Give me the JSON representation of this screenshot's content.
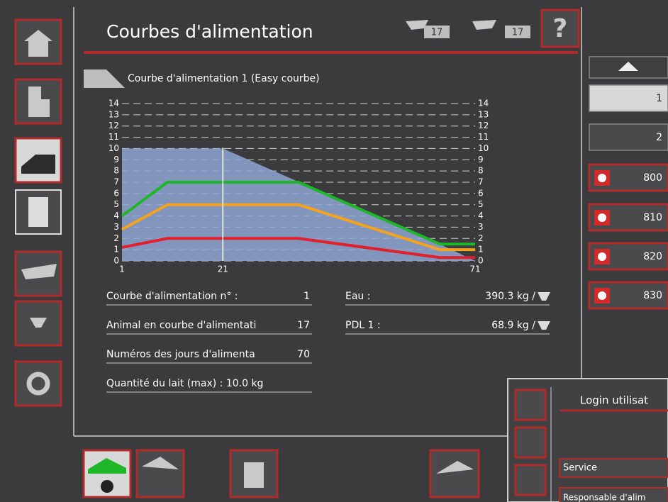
{
  "header": {
    "title": "Courbes d'alimentation",
    "badges": [
      "17",
      "17"
    ],
    "help": "?"
  },
  "chart_data": {
    "type": "area-line",
    "title": "Courbe d'alimentation 1 (Easy courbe)",
    "xlim": [
      1,
      71
    ],
    "xticks": [
      1,
      21,
      71
    ],
    "ylim": [
      0,
      14
    ],
    "yticks": [
      0,
      1,
      2,
      3,
      4,
      5,
      6,
      7,
      8,
      9,
      10,
      11,
      12,
      13,
      14
    ],
    "marker_x": 21,
    "series": [
      {
        "kind": "area",
        "color": "#8fa6d4",
        "x": [
          1,
          21,
          64,
          71
        ],
        "values": [
          10,
          10,
          1.5,
          0
        ]
      },
      {
        "kind": "line",
        "color": "#1fb62a",
        "x": [
          1,
          10,
          36,
          64,
          71
        ],
        "values": [
          4,
          7,
          7,
          1.5,
          1.5
        ]
      },
      {
        "kind": "line",
        "color": "#f5a21d",
        "x": [
          1,
          10,
          36,
          64,
          71
        ],
        "values": [
          2.8,
          5,
          5,
          1,
          1
        ]
      },
      {
        "kind": "line",
        "color": "#e0202a",
        "x": [
          1,
          10,
          36,
          64,
          71
        ],
        "values": [
          1.2,
          2,
          2,
          0.3,
          0.3
        ]
      }
    ]
  },
  "info": {
    "left": [
      {
        "label": "Courbe d'alimentation n° :",
        "value": "1"
      },
      {
        "label": "Animal en courbe d'alimentati",
        "value": "17"
      },
      {
        "label": "Numéros des jours d'alimenta",
        "value": "70"
      },
      {
        "label": "Quantité du lait (max) : 10.0 kg",
        "value": ""
      }
    ],
    "right": [
      {
        "label": "Eau :",
        "value": "390.3 kg /"
      },
      {
        "label": "PDL 1 :",
        "value": "68.9 kg /"
      }
    ]
  },
  "right_buttons": [
    "1",
    "2",
    "800",
    "810",
    "820",
    "830"
  ],
  "overlay": {
    "title": "Login utilisat",
    "fields": [
      "Service",
      "Responsable d'alim"
    ]
  }
}
